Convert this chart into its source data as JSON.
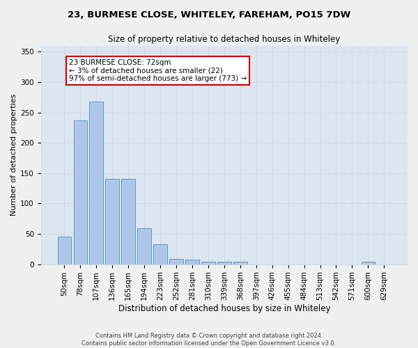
{
  "title_line1": "23, BURMESE CLOSE, WHITELEY, FAREHAM, PO15 7DW",
  "title_line2": "Size of property relative to detached houses in Whiteley",
  "xlabel": "Distribution of detached houses by size in Whiteley",
  "ylabel": "Number of detached properties",
  "bar_labels": [
    "50sqm",
    "78sqm",
    "107sqm",
    "136sqm",
    "165sqm",
    "194sqm",
    "223sqm",
    "252sqm",
    "281sqm",
    "310sqm",
    "339sqm",
    "368sqm",
    "397sqm",
    "426sqm",
    "455sqm",
    "484sqm",
    "513sqm",
    "542sqm",
    "571sqm",
    "600sqm",
    "629sqm"
  ],
  "bar_values": [
    45,
    237,
    268,
    140,
    140,
    59,
    33,
    9,
    8,
    4,
    4,
    4,
    0,
    0,
    0,
    0,
    0,
    0,
    0,
    4,
    0
  ],
  "bar_color": "#aec6e8",
  "bar_edge_color": "#5a9bd5",
  "ylim": [
    0,
    360
  ],
  "yticks": [
    0,
    50,
    100,
    150,
    200,
    250,
    300,
    350
  ],
  "annotation_text": "23 BURMESE CLOSE: 72sqm\n← 3% of detached houses are smaller (22)\n97% of semi-detached houses are larger (773) →",
  "annotation_box_color": "#ffffff",
  "annotation_box_edge_color": "#cc0000",
  "grid_color": "#d0d8e4",
  "bg_color": "#dce6f0",
  "fig_bg_color": "#f0f0f0",
  "footnote": "Contains HM Land Registry data © Crown copyright and database right 2024.\nContains public sector information licensed under the Open Government Licence v3.0.",
  "property_bar_index": 1,
  "title1_fontsize": 9.5,
  "title2_fontsize": 8.5,
  "xlabel_fontsize": 8.5,
  "ylabel_fontsize": 8.0,
  "tick_fontsize": 7.5,
  "annot_fontsize": 7.5,
  "footnote_fontsize": 6.0
}
